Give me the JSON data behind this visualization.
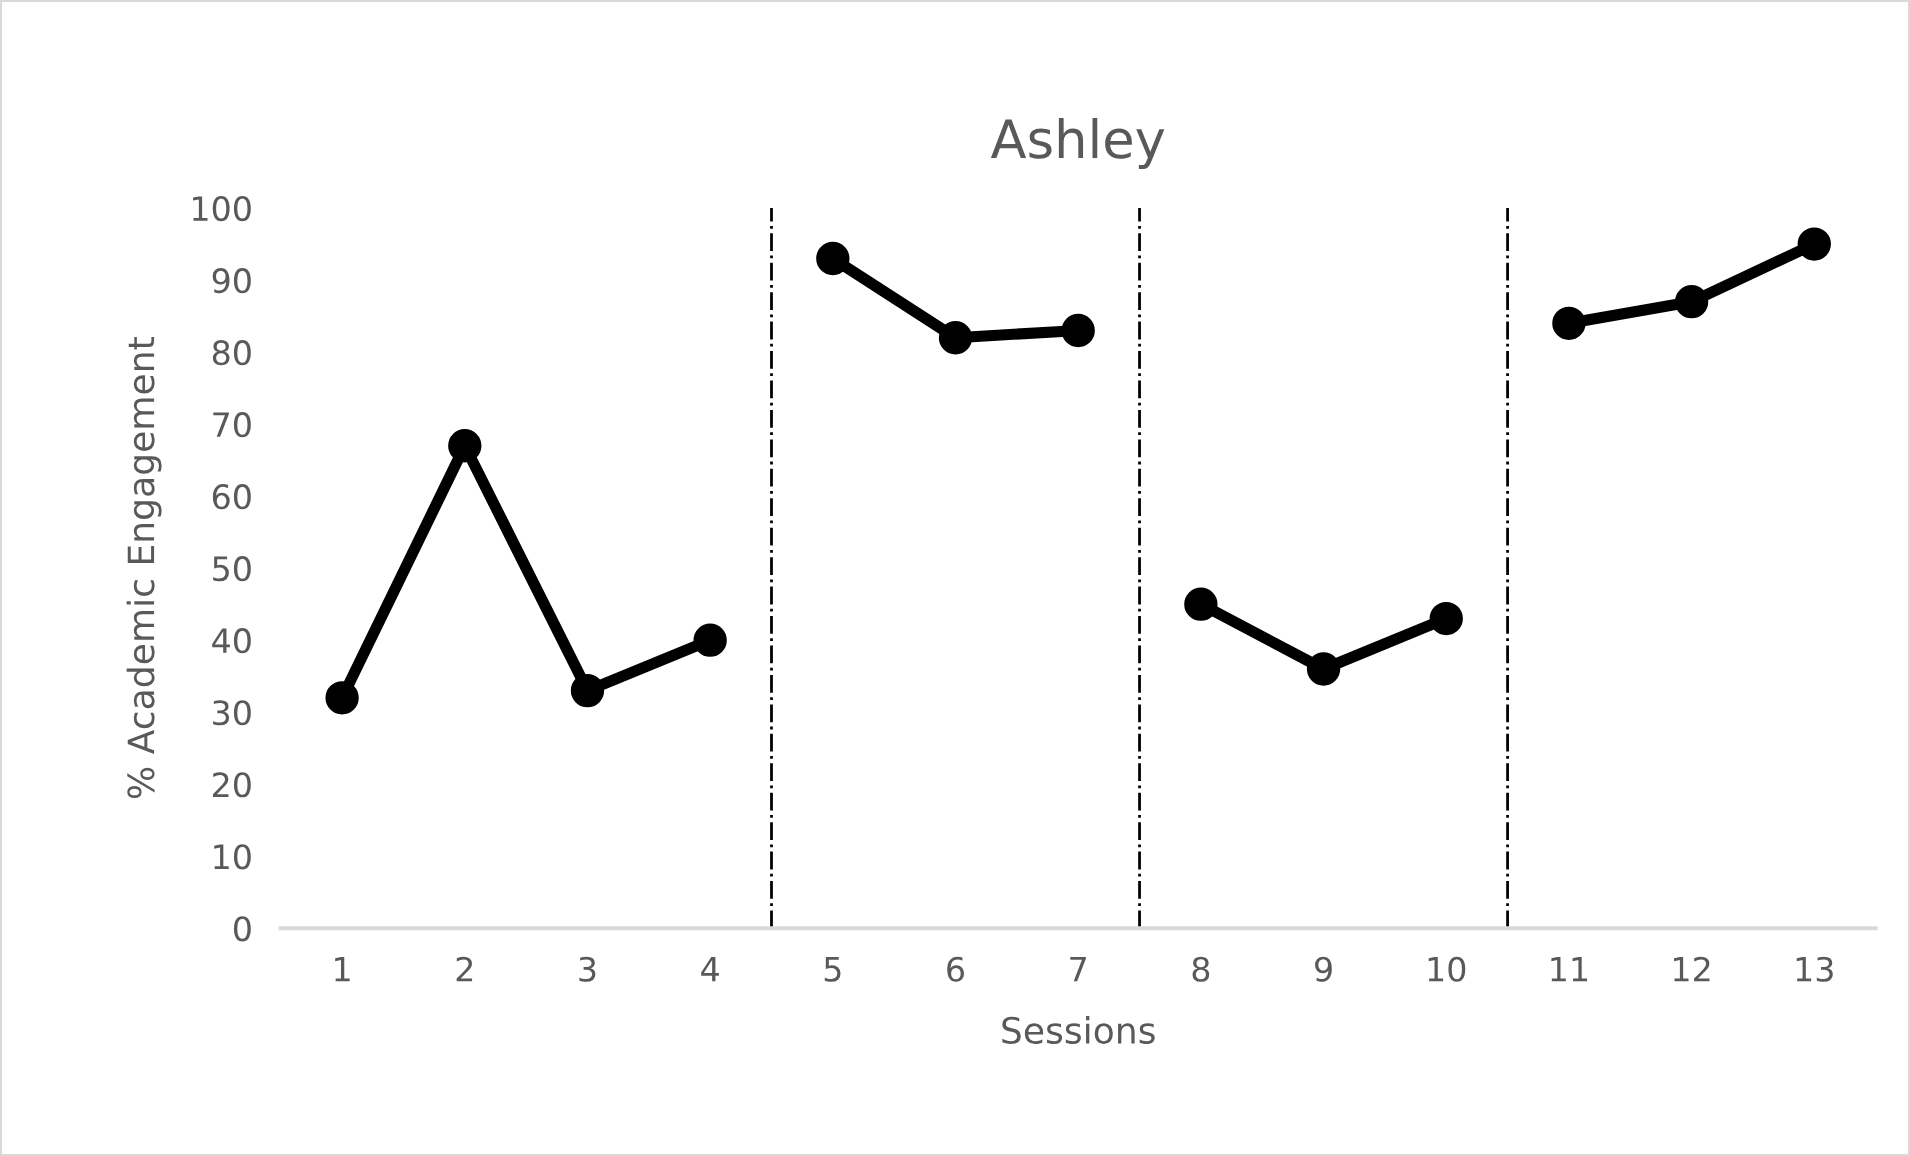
{
  "chart_data": {
    "type": "line",
    "title": "Ashley",
    "xlabel": "Sessions",
    "ylabel": "% Academic Engagement",
    "x": [
      1,
      2,
      3,
      4,
      5,
      6,
      7,
      8,
      9,
      10,
      11,
      12,
      13
    ],
    "series": [
      {
        "color": "#000000",
        "values": [
          32,
          67,
          33,
          40,
          null,
          null,
          null,
          null,
          null,
          null,
          null,
          null,
          null
        ]
      },
      {
        "color": "#000000",
        "values": [
          null,
          null,
          null,
          null,
          93,
          82,
          83,
          null,
          null,
          null,
          null,
          null,
          null
        ]
      },
      {
        "color": "#000000",
        "values": [
          null,
          null,
          null,
          null,
          null,
          null,
          null,
          45,
          36,
          43,
          null,
          null,
          null
        ]
      },
      {
        "color": "#000000",
        "values": [
          null,
          null,
          null,
          null,
          null,
          null,
          null,
          null,
          null,
          null,
          84,
          87,
          95
        ]
      }
    ],
    "xlim": [
      0.5,
      13.5
    ],
    "xticks": [
      1,
      2,
      3,
      4,
      5,
      6,
      7,
      8,
      9,
      10,
      11,
      12,
      13
    ],
    "ylim": [
      0,
      100
    ],
    "yticks": [
      0,
      10,
      20,
      30,
      40,
      50,
      60,
      70,
      80,
      90,
      100
    ],
    "ref_lines": [
      {
        "axis": "x",
        "value": 4.5,
        "color": "#000000",
        "line_style": "dashdot"
      },
      {
        "axis": "x",
        "value": 7.5,
        "color": "#000000",
        "line_style": "dashdot"
      },
      {
        "axis": "x",
        "value": 10.5,
        "color": "#000000",
        "line_style": "dashdot"
      }
    ],
    "marker": "circle",
    "line_style": "solid",
    "grid": false
  }
}
